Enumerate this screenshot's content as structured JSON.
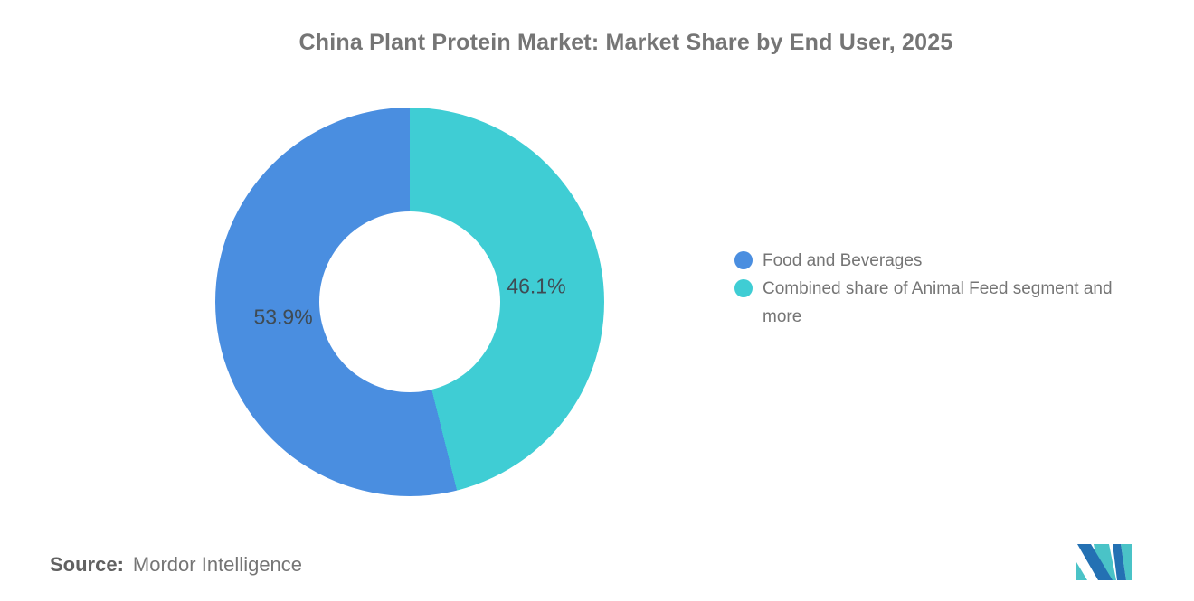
{
  "title": "China Plant Protein Market: Market Share by End User, 2025",
  "source": {
    "label": "Source:",
    "value": "Mordor Intelligence"
  },
  "logo": {
    "name": "mordor-intelligence-logo",
    "blue": "#2471B3",
    "teal": "#4AC3C7"
  },
  "chart_data": {
    "type": "pie",
    "subtype": "donut",
    "title": "China Plant Protein Market: Market Share by End User, 2025",
    "unit": "%",
    "direction": "counterclockwise",
    "start_angle_deg": 0,
    "inner_radius_ratio": 0.465,
    "legend_position": "right",
    "label_radius_px": 141,
    "segments": [
      {
        "label": "Food and Beverages",
        "value": 53.9,
        "display": "53.9%",
        "color": "#4A8EE0"
      },
      {
        "label": "Combined share of Animal Feed segment and more",
        "value": 46.1,
        "display": "46.1%",
        "color": "#3FCDD4"
      }
    ]
  }
}
